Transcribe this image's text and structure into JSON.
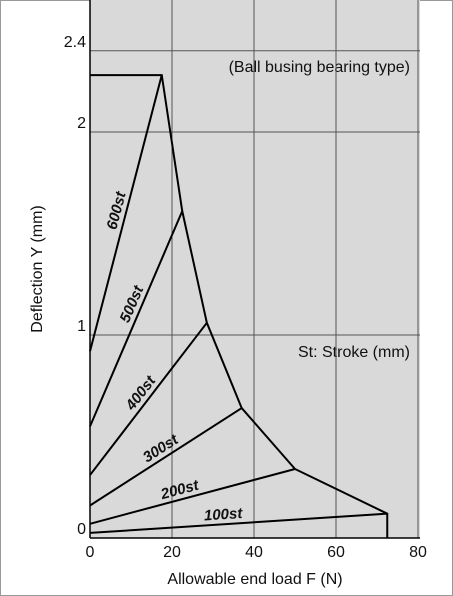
{
  "chart_data": {
    "type": "line",
    "xlabel": "Allowable end load F (N)",
    "ylabel": "Deflection Y (mm)",
    "annotations": [
      "(Ball busing bearing type)",
      "St: Stroke (mm)"
    ],
    "xlim": [
      0,
      80
    ],
    "xticks": [
      0,
      20,
      40,
      60,
      80
    ],
    "ylim": [
      0,
      2.65
    ],
    "yticks": [
      0,
      1,
      2,
      2.4
    ],
    "grid": true,
    "series": [
      {
        "name": "600st",
        "color": "#000000",
        "x": [
          0,
          17.5
        ],
        "values": [
          0.92,
          2.28
        ]
      },
      {
        "name": "500st",
        "color": "#000000",
        "x": [
          0,
          22.5
        ],
        "values": [
          0.55,
          1.61
        ]
      },
      {
        "name": "400st",
        "color": "#000000",
        "x": [
          0,
          28.5
        ],
        "values": [
          0.31,
          1.06
        ]
      },
      {
        "name": "300st",
        "color": "#000000",
        "x": [
          0,
          37
        ],
        "values": [
          0.16,
          0.64
        ]
      },
      {
        "name": "200st",
        "color": "#000000",
        "x": [
          0,
          50
        ],
        "values": [
          0.07,
          0.34
        ]
      },
      {
        "name": "100st",
        "color": "#000000",
        "x": [
          0,
          72.5
        ],
        "values": [
          0.025,
          0.12
        ]
      },
      {
        "color": "#000000",
        "x": [
          0,
          17.5,
          22.5,
          28.5,
          37,
          50,
          72.5,
          72.5
        ],
        "values": [
          2.28,
          2.28,
          1.61,
          1.06,
          0.64,
          0.34,
          0.12,
          0
        ]
      }
    ]
  }
}
